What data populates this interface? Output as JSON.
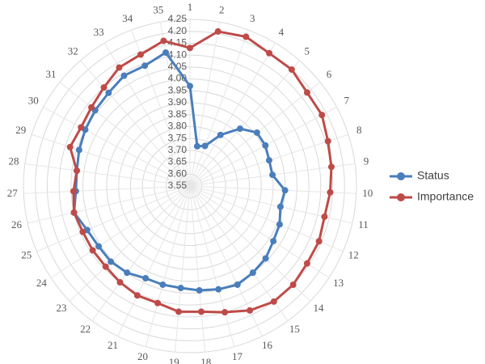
{
  "chart_data": {
    "type": "radar",
    "categories": [
      "1",
      "2",
      "3",
      "4",
      "5",
      "6",
      "7",
      "8",
      "9",
      "10",
      "11",
      "12",
      "13",
      "14",
      "15",
      "16",
      "17",
      "18",
      "19",
      "20",
      "21",
      "22",
      "23",
      "24",
      "25",
      "26",
      "27",
      "28",
      "29",
      "30",
      "31",
      "32",
      "33",
      "34",
      "35"
    ],
    "ylim": [
      3.55,
      4.25
    ],
    "yticks": [
      {
        "value": 3.55,
        "label": "3.55"
      },
      {
        "value": 3.6,
        "label": "3.60"
      },
      {
        "value": 3.65,
        "label": "3.65"
      },
      {
        "value": 3.7,
        "label": "3.70"
      },
      {
        "value": 3.75,
        "label": "3.75"
      },
      {
        "value": 3.8,
        "label": "3.80"
      },
      {
        "value": 3.85,
        "label": "3.85"
      },
      {
        "value": 3.9,
        "label": "3.90"
      },
      {
        "value": 3.95,
        "label": "3.95"
      },
      {
        "value": 4.0,
        "label": "4.00"
      },
      {
        "value": 4.05,
        "label": "4.05"
      },
      {
        "value": 4.1,
        "label": "4.10"
      },
      {
        "value": 4.15,
        "label": "4.15"
      },
      {
        "value": 4.2,
        "label": "4.20"
      },
      {
        "value": 4.25,
        "label": "4.25"
      }
    ],
    "grid": true,
    "legend": "right",
    "series": [
      {
        "name": "Status",
        "color": "#4a7ebb",
        "values": [
          3.97,
          3.72,
          3.73,
          3.8,
          3.87,
          3.91,
          3.91,
          3.9,
          3.9,
          3.95,
          3.94,
          3.96,
          3.97,
          3.99,
          4.0,
          4.01,
          4.0,
          3.99,
          3.98,
          3.98,
          3.98,
          4.0,
          4.01,
          4.01,
          4.02,
          4.05,
          4.03,
          4.03,
          4.04,
          4.05,
          4.06,
          4.07,
          4.09,
          4.09,
          4.12
        ]
      },
      {
        "name": "Importance",
        "color": "#be4b48",
        "values": [
          4.13,
          4.21,
          4.22,
          4.2,
          4.2,
          4.18,
          4.18,
          4.16,
          4.15,
          4.14,
          4.13,
          4.14,
          4.14,
          4.15,
          4.15,
          4.13,
          4.1,
          4.08,
          4.08,
          4.06,
          4.06,
          4.05,
          4.04,
          4.04,
          4.04,
          4.05,
          4.04,
          4.03,
          4.08,
          4.07,
          4.08,
          4.1,
          4.13,
          4.14,
          4.17
        ]
      }
    ]
  }
}
